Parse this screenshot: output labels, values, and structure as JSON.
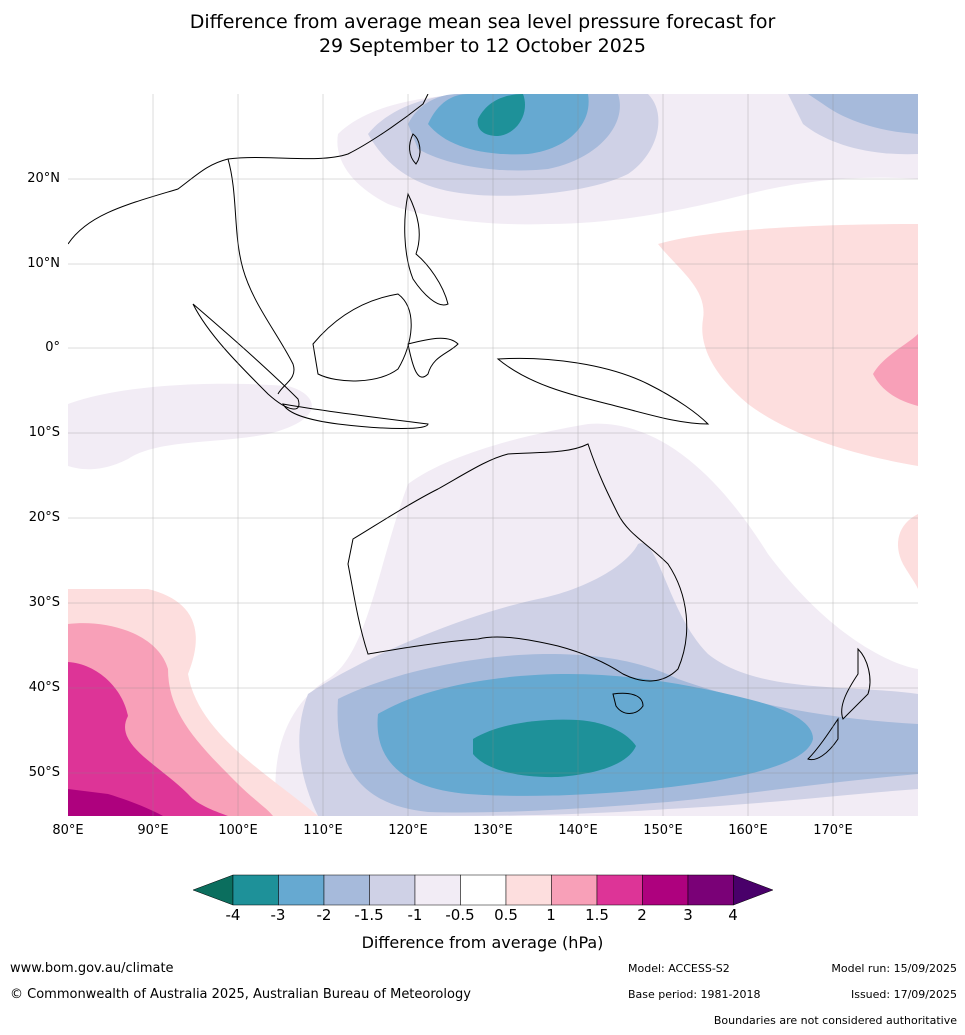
{
  "title_line1": "Difference from average mean sea level pressure forecast for",
  "title_line2": "29 September to 12 October 2025",
  "map": {
    "lon_range": [
      80,
      180
    ],
    "lat_range": [
      -55,
      30
    ],
    "lat_labels": [
      "20°N",
      "10°N",
      "0°",
      "10°S",
      "20°S",
      "30°S",
      "40°S",
      "50°S"
    ],
    "lon_labels": [
      "80°E",
      "90°E",
      "100°E",
      "110°E",
      "120°E",
      "130°E",
      "140°E",
      "150°E",
      "160°E",
      "170°E"
    ]
  },
  "colorbar": {
    "ticks": [
      "-4",
      "-3",
      "-2",
      "-1.5",
      "-1",
      "-0.5",
      "0.5",
      "1",
      "1.5",
      "2",
      "3",
      "4"
    ],
    "colors": [
      "#0b6e5e",
      "#1e9199",
      "#66a9d1",
      "#a6badb",
      "#cfd1e6",
      "#f2ecf5",
      "#ffffff",
      "#fddede",
      "#f8a0b8",
      "#dd3497",
      "#ae017e",
      "#7a0177",
      "#49006a"
    ],
    "title": "Difference from average (hPa)"
  },
  "footer": {
    "website": "www.bom.gov.au/climate",
    "copyright": "© Commonwealth of Australia 2025, Australian Bureau of Meteorology",
    "model": "Model: ACCESS-S2",
    "base_period": "Base period: 1981-2018",
    "model_run": "Model run: 15/09/2025",
    "issued": "Issued: 17/09/2025",
    "disclaimer": "Boundaries are not considered authoritative"
  }
}
